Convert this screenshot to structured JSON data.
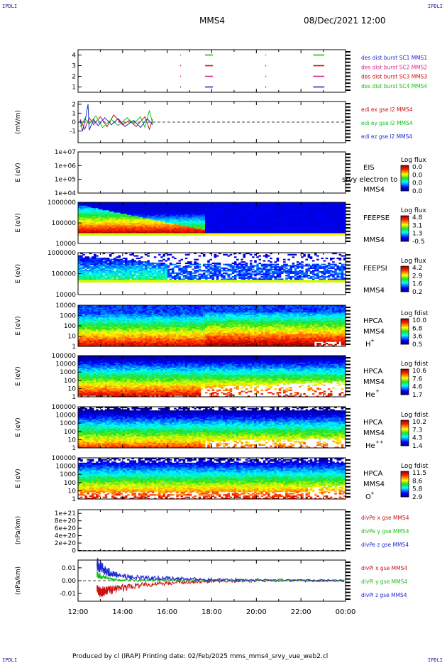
{
  "corner_label": "IPDLI",
  "header": {
    "spacecraft": "MMS4",
    "datetime": "08/Dec/2021 12:00"
  },
  "footer": "Produced by cl (IRAP)   Printing date: 02/Feb/2025   mms_mms4_srvy_vue_web2.cl",
  "time_axis": {
    "start_hour": 12,
    "end_hour": 24,
    "ticks": [
      "12:00",
      "14:00",
      "16:00",
      "18:00",
      "20:00",
      "22:00",
      "00:00"
    ]
  },
  "panels": {
    "burst": {
      "ylim": [
        0.5,
        4.5
      ],
      "yticks": [
        "1",
        "2",
        "3",
        "4"
      ],
      "legend": [
        {
          "text": "des dist burst SC1 MMS1",
          "color": "#1e2ad0"
        },
        {
          "text": "des dist burst SC2 MMS2",
          "color": "#e0208a"
        },
        {
          "text": "des dist burst SC3 MMS3",
          "color": "#cc1010"
        },
        {
          "text": "des dist burst SC4 MMS4",
          "color": "#18c018"
        }
      ],
      "segments": [
        {
          "sc": 4,
          "t0": 16.58,
          "t1": 16.62,
          "color": "#18c018"
        },
        {
          "sc": 4,
          "t0": 17.7,
          "t1": 18.05,
          "color": "#18c018"
        },
        {
          "sc": 4,
          "t0": 20.4,
          "t1": 20.44,
          "color": "#18c018"
        },
        {
          "sc": 4,
          "t0": 22.55,
          "t1": 23.05,
          "color": "#18c018"
        },
        {
          "sc": 3,
          "t0": 16.58,
          "t1": 16.62,
          "color": "#cc1010"
        },
        {
          "sc": 3,
          "t0": 17.7,
          "t1": 18.05,
          "color": "#cc1010"
        },
        {
          "sc": 3,
          "t0": 20.4,
          "t1": 20.44,
          "color": "#cc1010"
        },
        {
          "sc": 3,
          "t0": 22.55,
          "t1": 23.05,
          "color": "#cc1010"
        },
        {
          "sc": 2,
          "t0": 16.58,
          "t1": 16.62,
          "color": "#e0208a"
        },
        {
          "sc": 2,
          "t0": 17.7,
          "t1": 18.05,
          "color": "#e0208a"
        },
        {
          "sc": 2,
          "t0": 20.4,
          "t1": 20.44,
          "color": "#e0208a"
        },
        {
          "sc": 2,
          "t0": 22.55,
          "t1": 23.05,
          "color": "#e0208a"
        },
        {
          "sc": 1,
          "t0": 16.58,
          "t1": 16.62,
          "color": "#1e2ad0"
        },
        {
          "sc": 1,
          "t0": 17.7,
          "t1": 18.05,
          "color": "#1e2ad0"
        },
        {
          "sc": 1,
          "t0": 20.4,
          "t1": 20.44,
          "color": "#1e2ad0"
        },
        {
          "sc": 1,
          "t0": 22.55,
          "t1": 23.05,
          "color": "#1e2ad0"
        }
      ]
    },
    "edi": {
      "ylabel": "(mV/m)",
      "ylim": [
        -2.3,
        2.3
      ],
      "yticks": [
        "-1",
        "0",
        "1",
        "2"
      ],
      "legend": [
        {
          "text": "edi ex gse l2 MMS4",
          "color": "#cc1010"
        },
        {
          "text": "edi ey gse l2 MMS4",
          "color": "#18c018"
        },
        {
          "text": "edi ez gse l2 MMS4",
          "color": "#1e2ad0"
        }
      ],
      "series": [
        {
          "name": "ex",
          "color": "#cc1010",
          "points": [
            [
              12.1,
              0.3
            ],
            [
              12.3,
              -0.8
            ],
            [
              12.5,
              0.5
            ],
            [
              12.7,
              -0.3
            ],
            [
              13.0,
              0.6
            ],
            [
              13.3,
              -0.5
            ],
            [
              13.6,
              0.8
            ],
            [
              14.0,
              -0.3
            ],
            [
              14.3,
              0.2
            ],
            [
              14.6,
              -0.5
            ],
            [
              15.0,
              0.6
            ],
            [
              15.2,
              -0.8
            ],
            [
              15.35,
              0.3
            ]
          ]
        },
        {
          "name": "ey",
          "color": "#18c018",
          "points": [
            [
              12.1,
              -0.5
            ],
            [
              12.3,
              0.4
            ],
            [
              12.5,
              -0.2
            ],
            [
              12.8,
              0.7
            ],
            [
              13.1,
              -0.6
            ],
            [
              13.5,
              0.3
            ],
            [
              13.8,
              -0.4
            ],
            [
              14.2,
              0.5
            ],
            [
              14.5,
              -0.2
            ],
            [
              14.8,
              0.6
            ],
            [
              15.0,
              -0.6
            ],
            [
              15.2,
              1.3
            ],
            [
              15.35,
              -0.2
            ]
          ]
        },
        {
          "name": "ez",
          "color": "#1e2ad0",
          "points": [
            [
              12.1,
              0.2
            ],
            [
              12.2,
              -1.0
            ],
            [
              12.35,
              0.6
            ],
            [
              12.45,
              2.0
            ],
            [
              12.5,
              -0.9
            ],
            [
              12.7,
              0.3
            ],
            [
              12.9,
              -0.4
            ],
            [
              13.2,
              0.5
            ],
            [
              13.5,
              -0.3
            ],
            [
              13.8,
              0.4
            ],
            [
              14.1,
              -0.5
            ],
            [
              14.5,
              0.2
            ],
            [
              14.8,
              -0.6
            ],
            [
              15.1,
              0.4
            ],
            [
              15.35,
              -0.3
            ]
          ]
        }
      ]
    },
    "eis": {
      "ylabel": "E (eV)",
      "yticks": [
        "1e+04",
        "1e+05",
        "1e+06",
        "1e+07"
      ],
      "instrument": "EIS",
      "spacecraft": "MMS4",
      "overlay_text": "srvy electron to",
      "colorbar_title": "Log flux",
      "colorbar_ticks": [
        "0.0",
        "0.0",
        "0.0",
        "0.0"
      ]
    },
    "feepse": {
      "ylabel": "E (eV)",
      "yticks": [
        "10000",
        "100000",
        "1000000"
      ],
      "instrument": "FEEPSE",
      "spacecraft": "MMS4",
      "colorbar_title": "Log flux",
      "colorbar_ticks": [
        "4.8",
        "3.1",
        "1.3",
        "-0.5"
      ]
    },
    "feepsi": {
      "ylabel": "E (eV)",
      "yticks": [
        "10000",
        "100000",
        "1000000"
      ],
      "instrument": "FEEPSI",
      "spacecraft": "MMS4",
      "colorbar_title": "Log flux",
      "colorbar_ticks": [
        "4.2",
        "2.9",
        "1.6",
        "0.2"
      ]
    },
    "hpca_h": {
      "ylabel": "E (eV)",
      "yticks": [
        "1",
        "10",
        "100",
        "1000",
        "10000"
      ],
      "instrument": "HPCA",
      "spacecraft": "MMS4",
      "species": "H",
      "species_sup": "+",
      "colorbar_title": "Log fdist",
      "colorbar_ticks": [
        "10.0",
        "6.8",
        "3.6",
        "0.5"
      ]
    },
    "hpca_he": {
      "ylabel": "E (eV)",
      "yticks": [
        "1",
        "10",
        "100",
        "1000",
        "10000",
        "100000"
      ],
      "instrument": "HPCA",
      "spacecraft": "MMS4",
      "species": "He",
      "species_sup": "+",
      "colorbar_title": "Log fdist",
      "colorbar_ticks": [
        "10.6",
        "7.6",
        "4.6",
        "1.7"
      ]
    },
    "hpca_hepp": {
      "ylabel": "E (eV)",
      "yticks": [
        "1",
        "10",
        "100",
        "1000",
        "10000",
        "100000"
      ],
      "instrument": "HPCA",
      "spacecraft": "MMS4",
      "species": "He",
      "species_sup": "++",
      "colorbar_title": "Log fdist",
      "colorbar_ticks": [
        "10.2",
        "7.3",
        "4.3",
        "1.4"
      ]
    },
    "hpca_o": {
      "ylabel": "E (eV)",
      "yticks": [
        "1",
        "10",
        "100",
        "1000",
        "10000",
        "100000"
      ],
      "instrument": "HPCA",
      "spacecraft": "MMS4",
      "species": "O",
      "species_sup": "+",
      "colorbar_title": "Log fdist",
      "colorbar_ticks": [
        "11.5",
        "8.6",
        "5.8",
        "2.9"
      ]
    },
    "divpe": {
      "ylabel": "(nPa/km)",
      "ylim": [
        -1e+19,
        1.1e+21
      ],
      "yticks": [
        "0",
        "2e+20",
        "4e+20",
        "6e+20",
        "8e+20",
        "1e+21"
      ],
      "legend": [
        {
          "text": "divPe x gse MMS4",
          "color": "#cc1010"
        },
        {
          "text": "divPe y gse MMS4",
          "color": "#18c018"
        },
        {
          "text": "divPe z gse MMS4",
          "color": "#1e2ad0"
        }
      ]
    },
    "divpi": {
      "ylabel": "(nPa/km)",
      "ylim": [
        -0.016,
        0.016
      ],
      "yticks": [
        "-0.01",
        "0.00",
        "0.01"
      ],
      "legend": [
        {
          "text": "divPi x gse MMS4",
          "color": "#cc1010"
        },
        {
          "text": "divPi y gse MMS4",
          "color": "#18c018"
        },
        {
          "text": "divPi z gse MMS4",
          "color": "#1e2ad0"
        }
      ],
      "series": [
        {
          "name": "x",
          "color": "#cc1010",
          "points": [
            [
              12.85,
              -0.006
            ],
            [
              13.0,
              -0.0095
            ],
            [
              13.3,
              -0.008
            ],
            [
              13.8,
              -0.006
            ],
            [
              14.5,
              -0.004
            ],
            [
              15.5,
              -0.0025
            ],
            [
              16.5,
              -0.0015
            ],
            [
              17.5,
              -0.0008
            ],
            [
              18.5,
              -0.0005
            ],
            [
              20.0,
              -0.0003
            ],
            [
              22.0,
              -0.0002
            ],
            [
              24.0,
              0.0
            ]
          ]
        },
        {
          "name": "y",
          "color": "#18c018",
          "points": [
            [
              12.85,
              0.005
            ],
            [
              13.0,
              0.0035
            ],
            [
              13.5,
              0.001
            ],
            [
              14.0,
              0.0005
            ],
            [
              15.0,
              0.0003
            ],
            [
              16.0,
              0.0006
            ],
            [
              17.0,
              0.0002
            ],
            [
              18.0,
              0.0003
            ],
            [
              20.0,
              0.0002
            ],
            [
              22.0,
              0.0001
            ],
            [
              24.0,
              0.0
            ]
          ]
        },
        {
          "name": "z",
          "color": "#1e2ad0",
          "points": [
            [
              12.85,
              0.013
            ],
            [
              13.0,
              0.011
            ],
            [
              13.3,
              0.007
            ],
            [
              13.8,
              0.004
            ],
            [
              14.5,
              0.0025
            ],
            [
              15.5,
              0.002
            ],
            [
              16.5,
              0.0015
            ],
            [
              17.5,
              0.001
            ],
            [
              18.5,
              0.0008
            ],
            [
              20.0,
              0.0005
            ],
            [
              22.0,
              0.0003
            ],
            [
              24.0,
              0.0
            ]
          ]
        }
      ]
    }
  }
}
